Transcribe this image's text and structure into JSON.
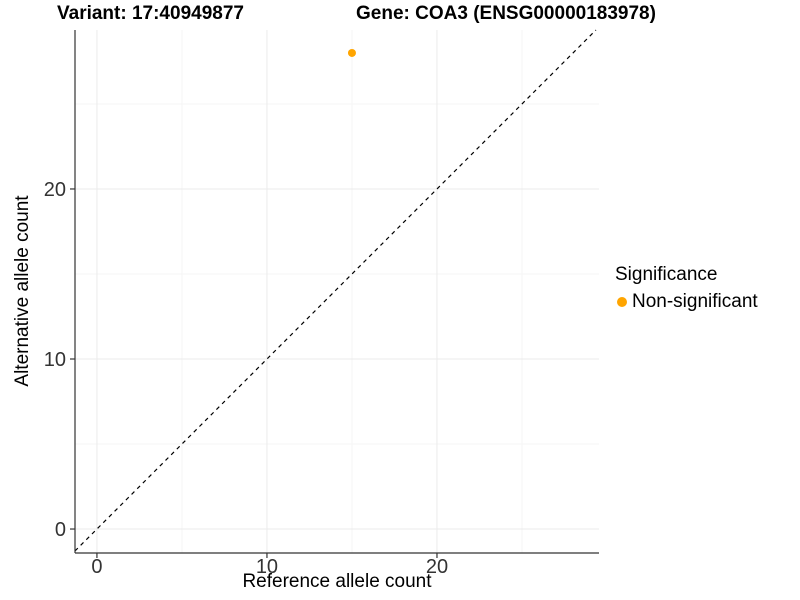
{
  "titles": {
    "left": "Variant: 17:40949877",
    "right": "Gene: COA3 (ENSG00000183978)"
  },
  "chart_data": {
    "type": "scatter",
    "titles": [
      "Variant: 17:40949877",
      "Gene: COA3 (ENSG00000183978)"
    ],
    "xlabel": "Reference allele count",
    "ylabel": "Alternative allele count",
    "x_ticks": [
      0,
      10,
      20
    ],
    "y_ticks": [
      0,
      10,
      20
    ],
    "x_minor_ticks": [
      5,
      15,
      25
    ],
    "y_minor_ticks": [
      5,
      15,
      25
    ],
    "xlim": [
      -1.29,
      29.53
    ],
    "ylim": [
      -1.41,
      29.35
    ],
    "grid": true,
    "reference_line": {
      "type": "abline",
      "slope": 1,
      "intercept": 0,
      "linestyle": "dashed",
      "color": "#000000"
    },
    "series": [
      {
        "name": "Non-significant",
        "color": "#FFA500",
        "points": [
          {
            "x": 15,
            "y": 28
          }
        ]
      }
    ],
    "legend": {
      "title": "Significance",
      "position": "right",
      "items": [
        {
          "label": "Non-significant",
          "color": "#FFA500"
        }
      ]
    }
  },
  "colors": {
    "point": "#FFA500",
    "axis_line": "#333333",
    "tick_mark": "#333333",
    "tick_label": "#333333",
    "grid_major": "#ebebeb",
    "grid_minor": "#f5f5f5",
    "reference_line": "#000000"
  }
}
